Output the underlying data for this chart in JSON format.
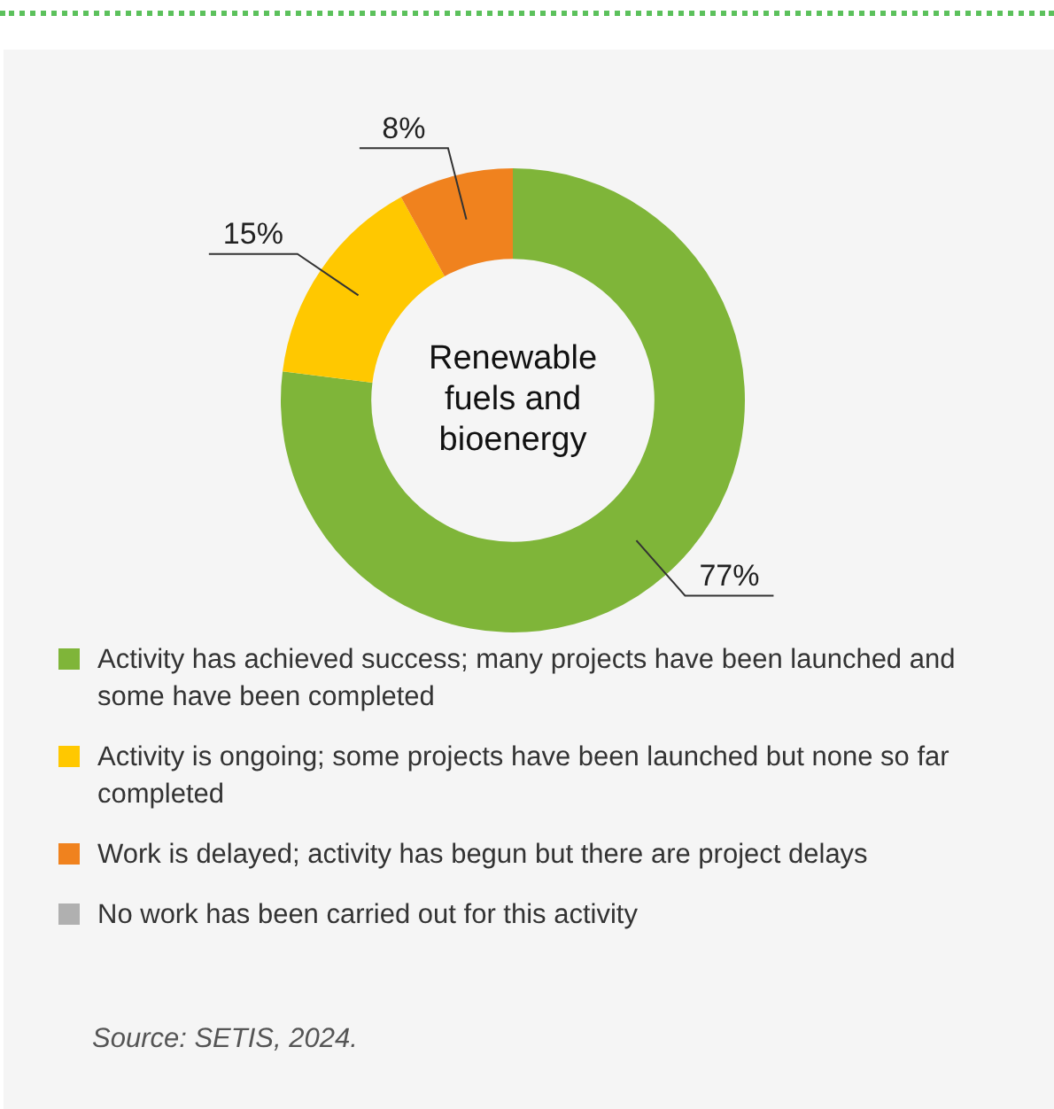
{
  "chart_data": {
    "type": "donut",
    "title": "Renewable fuels and bioenergy",
    "categories": [
      "Activity has achieved success; many projects have been launched and some have been completed",
      "Activity is ongoing; some projects have been launched but none so far completed",
      "Work is delayed; activity has begun but there are project delays",
      "No work has been carried out for this activity"
    ],
    "values": [
      77,
      15,
      8,
      0
    ],
    "colors": [
      "#7fb539",
      "#ffc800",
      "#f0821e",
      "#b0b0b0"
    ],
    "value_labels": [
      "77%",
      "15%",
      "8%",
      null
    ],
    "legend": "bottom",
    "annotations": [
      "Source: SETIS, 2024."
    ]
  }
}
